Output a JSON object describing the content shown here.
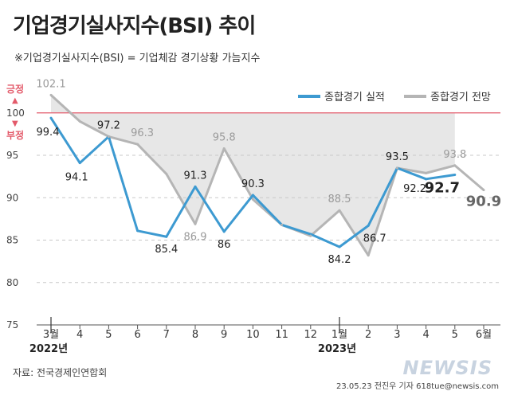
{
  "title": "기업경기실사지수(BSI) 추이",
  "subtitle": "※기업경기실사지수(BSI) = 기업체감 경기상황 가늠지수",
  "source": "자료: 전국경제인연합회",
  "credit": "23.05.23 전진우 기자 618tue@newsis.com",
  "watermark": "NEWSIS",
  "colors": {
    "actual": "#3d9ad1",
    "outlook": "#b5b5b5",
    "reference": "#e35a6a",
    "fill": "#e3e3e3"
  },
  "chart_data": {
    "type": "line",
    "categories": [
      "3월",
      "4",
      "5",
      "6",
      "7",
      "8",
      "9",
      "10",
      "11",
      "12",
      "1월",
      "2",
      "3",
      "4",
      "5",
      "6월"
    ],
    "year_labels": [
      {
        "index": 0,
        "label": "2022년"
      },
      {
        "index": 10,
        "label": "2023년"
      }
    ],
    "series": [
      {
        "name": "종합경기 실적",
        "values": [
          99.4,
          94.1,
          97.2,
          86.1,
          85.4,
          91.3,
          86,
          90.3,
          86.8,
          85.7,
          84.2,
          86.7,
          93.5,
          92.2,
          92.7,
          null
        ]
      },
      {
        "name": "종합경기 전망",
        "values": [
          102.1,
          99,
          97.2,
          96.3,
          92.8,
          86.9,
          95.8,
          89.8,
          86.8,
          85.5,
          88.5,
          83.2,
          93.5,
          92.9,
          93.8,
          90.9
        ]
      }
    ],
    "data_labels": {
      "actual": {
        "0": "99.4",
        "1": "94.1",
        "2": "97.2",
        "4": "85.4",
        "5": "91.3",
        "6": "86",
        "7": "90.3",
        "10": "84.2",
        "11": "86.7",
        "12": "93.5",
        "13": "92.2",
        "14": "92.7"
      },
      "outlook": {
        "0": "102.1",
        "3": "96.3",
        "5": "86.9",
        "6": "95.8",
        "10": "88.5",
        "14": "93.8",
        "15": "90.9"
      }
    },
    "reference_line": {
      "value": 100,
      "label_above": "긍정",
      "label_below": "부정",
      "arrow_up": "▲",
      "arrow_down": "▼"
    },
    "yticks": [
      75,
      80,
      85,
      90,
      95,
      100
    ],
    "ylim": [
      75,
      103
    ]
  }
}
